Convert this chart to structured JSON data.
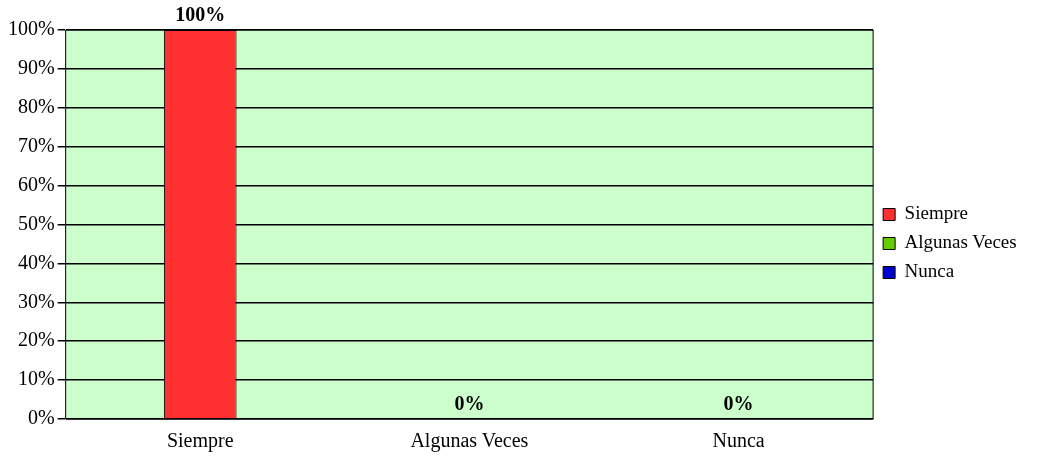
{
  "chart_data": {
    "type": "bar",
    "categories": [
      "Siempre",
      "Algunas Veces",
      "Nunca"
    ],
    "series": [
      {
        "name": "Siempre",
        "color": "#ff3030",
        "values": [
          100,
          null,
          null
        ],
        "value_labels": [
          "100%",
          null,
          null
        ]
      },
      {
        "name": "Algunas Veces",
        "color": "#66cc00",
        "values": [
          null,
          0,
          null
        ],
        "value_labels": [
          null,
          "0%",
          null
        ]
      },
      {
        "name": "Nunca",
        "color": "#0000cc",
        "values": [
          null,
          null,
          0
        ],
        "value_labels": [
          null,
          null,
          "0%"
        ]
      }
    ],
    "ylim": [
      0,
      100
    ],
    "yticks": [
      {
        "value": 0,
        "label": "0%"
      },
      {
        "value": 10,
        "label": "10%"
      },
      {
        "value": 20,
        "label": "20%"
      },
      {
        "value": 30,
        "label": "30%"
      },
      {
        "value": 40,
        "label": "40%"
      },
      {
        "value": 50,
        "label": "50%"
      },
      {
        "value": 60,
        "label": "60%"
      },
      {
        "value": 70,
        "label": "70%"
      },
      {
        "value": 80,
        "label": "80%"
      },
      {
        "value": 90,
        "label": "90%"
      },
      {
        "value": 100,
        "label": "100%"
      }
    ],
    "grid": "y",
    "legend": "right"
  }
}
